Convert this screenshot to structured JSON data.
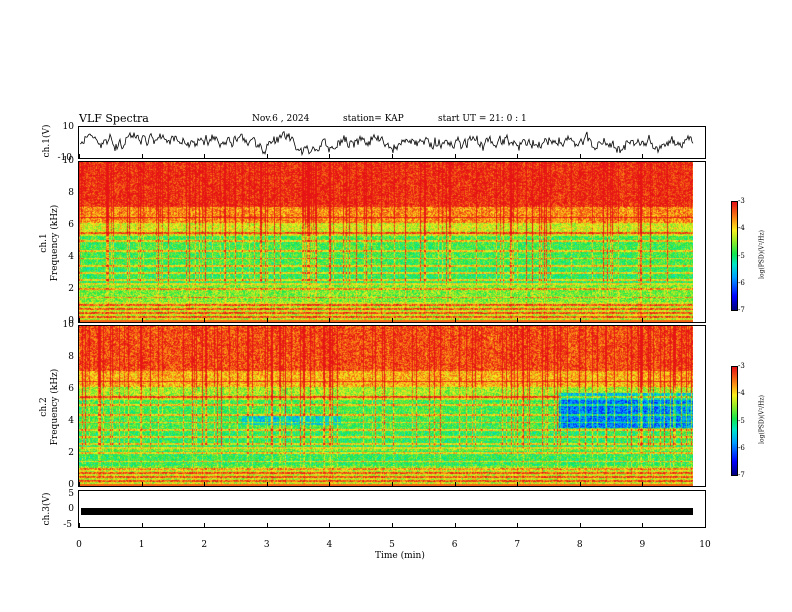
{
  "header": {
    "title": "VLF Spectra",
    "date": "Nov.6  , 2024",
    "station": "station= KAP",
    "start": "start  UT  =   21: 0  : 1"
  },
  "chart_data": [
    {
      "type": "line",
      "id": "ch1-waveform",
      "ylabel": "ch.1(V)",
      "ylim": [
        -10,
        10
      ],
      "ytick_labels": [
        "10",
        "-10"
      ],
      "xlim": [
        0,
        10
      ],
      "description_values": "amplitude approx between -6 and 7 V, noisy"
    },
    {
      "type": "heatmap",
      "id": "ch1-spectrogram",
      "ylabel": "ch.1\nFrequency  (kHz)",
      "ylabel_lines": [
        "ch.1",
        "Frequency  (kHz)"
      ],
      "ylim": [
        0,
        10
      ],
      "ytick_labels": [
        "10",
        "8",
        "6",
        "4",
        "2",
        "0"
      ],
      "xlim": [
        0,
        9.85
      ],
      "colorbar": {
        "label": "log(PSD)(V²/Hz)",
        "range": [
          -7,
          -3
        ],
        "tick_labels": [
          "-3",
          "-4",
          "-5",
          "-6",
          "-7"
        ]
      }
    },
    {
      "type": "heatmap",
      "id": "ch2-spectrogram",
      "ylabel_lines": [
        "ch.2",
        "Frequency  (kHz)"
      ],
      "ylim": [
        0,
        10
      ],
      "ytick_labels": [
        "10",
        "8",
        "6",
        "4",
        "2",
        "0"
      ],
      "xlim": [
        0,
        9.85
      ],
      "colorbar": {
        "label": "log(PSD)(V²/Hz)",
        "range": [
          -7,
          -3
        ],
        "tick_labels": [
          "-3",
          "-4",
          "-5",
          "-6",
          "-7"
        ]
      }
    },
    {
      "type": "line",
      "id": "ch3-signal",
      "ylabel": "ch.3(V)",
      "ylim": [
        -5,
        5
      ],
      "ytick_labels": [
        "5",
        "0",
        "-5"
      ],
      "value_band": [
        -1.2,
        0.2
      ],
      "xlim": [
        0,
        9.85
      ]
    }
  ],
  "xaxis": {
    "label": "Time  (min)",
    "tick_labels": [
      "0",
      "1",
      "2",
      "3",
      "4",
      "5",
      "6",
      "7",
      "8",
      "9",
      "10"
    ],
    "range": [
      0,
      10
    ]
  },
  "colors": {
    "high": "#e8281e",
    "mid": "#f0e020",
    "low": "#10e060",
    "verylow": "#10a0f0"
  }
}
